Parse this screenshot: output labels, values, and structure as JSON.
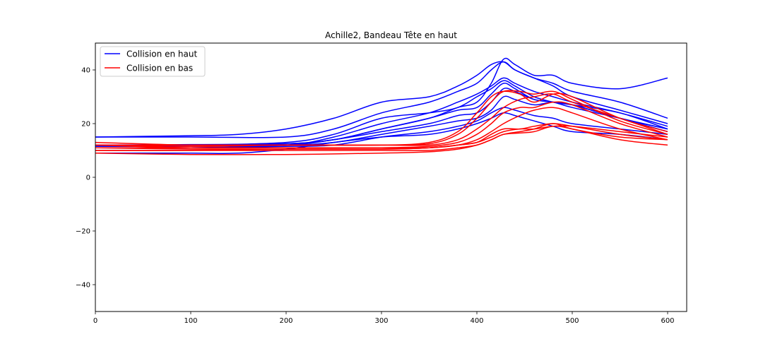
{
  "chart_data": {
    "type": "line",
    "title": "Achille2, Bandeau Tête en haut",
    "xlabel": "",
    "ylabel": "",
    "xlim": [
      0,
      620
    ],
    "ylim": [
      -50,
      50
    ],
    "xticks": [
      0,
      100,
      200,
      300,
      400,
      500,
      600
    ],
    "yticks": [
      -40,
      -20,
      0,
      20,
      40
    ],
    "grid": false,
    "legend_position": "top-left",
    "legend": [
      {
        "label": "Collision en haut",
        "color": "#0000ff"
      },
      {
        "label": "Collision en bas",
        "color": "#ff0000"
      }
    ],
    "series": [
      {
        "group": "Collision en haut",
        "color": "#0000ff",
        "x": [
          0,
          100,
          200,
          250,
          300,
          350,
          380,
          400,
          415,
          428,
          440,
          460,
          480,
          500,
          550,
          600
        ],
        "y": [
          12,
          12.2,
          12.5,
          14,
          18,
          22,
          26,
          28,
          35,
          44,
          42,
          38,
          38,
          35,
          33,
          37
        ]
      },
      {
        "group": "Collision en haut",
        "color": "#0000ff",
        "x": [
          0,
          100,
          200,
          250,
          300,
          350,
          380,
          400,
          415,
          428,
          440,
          460,
          480,
          500,
          550,
          600
        ],
        "y": [
          15,
          15,
          15,
          18,
          24,
          28,
          32,
          35,
          40,
          43,
          40,
          37,
          35,
          32,
          28,
          22
        ]
      },
      {
        "group": "Collision en haut",
        "color": "#0000ff",
        "x": [
          0,
          100,
          150,
          200,
          250,
          300,
          350,
          380,
          400,
          415,
          428,
          440,
          460,
          480,
          500,
          550,
          600
        ],
        "y": [
          15,
          15.5,
          16,
          18,
          22,
          28,
          30,
          34,
          38,
          42,
          43,
          40,
          37,
          34,
          30,
          25,
          20
        ]
      },
      {
        "group": "Collision en haut",
        "color": "#0000ff",
        "x": [
          0,
          100,
          200,
          250,
          300,
          350,
          380,
          400,
          415,
          428,
          440,
          460,
          480,
          500,
          550,
          600
        ],
        "y": [
          11,
          11,
          12,
          15,
          20,
          24,
          28,
          31,
          34,
          37,
          35,
          32,
          30,
          28,
          24,
          19
        ]
      },
      {
        "group": "Collision en haut",
        "color": "#0000ff",
        "x": [
          0,
          100,
          200,
          250,
          300,
          350,
          380,
          400,
          415,
          428,
          440,
          460,
          480,
          500,
          550,
          600
        ],
        "y": [
          12,
          12,
          13,
          16,
          22,
          24,
          26,
          30,
          33,
          36,
          34,
          30,
          28,
          27,
          24,
          18
        ]
      },
      {
        "group": "Collision en haut",
        "color": "#0000ff",
        "x": [
          0,
          100,
          200,
          250,
          300,
          350,
          380,
          400,
          415,
          428,
          440,
          460,
          480,
          500,
          550,
          600
        ],
        "y": [
          12,
          12,
          12.5,
          14,
          18,
          22,
          25,
          26,
          31,
          35,
          33,
          29,
          28,
          26,
          22,
          18
        ]
      },
      {
        "group": "Collision en haut",
        "color": "#0000ff",
        "x": [
          0,
          100,
          200,
          250,
          300,
          350,
          380,
          400,
          415,
          428,
          440,
          460,
          480,
          500,
          550,
          600
        ],
        "y": [
          11.5,
          11.5,
          12,
          14,
          17,
          20,
          23,
          24,
          28,
          33,
          32,
          29,
          28,
          27,
          22,
          18
        ]
      },
      {
        "group": "Collision en haut",
        "color": "#0000ff",
        "x": [
          0,
          100,
          200,
          250,
          300,
          350,
          380,
          400,
          415,
          428,
          440,
          460,
          480,
          500,
          550,
          600
        ],
        "y": [
          12,
          12,
          12,
          13,
          16,
          19,
          21,
          22,
          25,
          30,
          29,
          27,
          28,
          27,
          22,
          17
        ]
      },
      {
        "group": "Collision en haut",
        "color": "#0000ff",
        "x": [
          0,
          100,
          200,
          250,
          300,
          350,
          380,
          400,
          415,
          428,
          440,
          460,
          480,
          500,
          550,
          600
        ],
        "y": [
          11,
          11,
          11.5,
          12,
          15,
          17,
          19,
          21,
          24,
          26,
          25,
          23,
          22,
          20,
          18,
          16
        ]
      },
      {
        "group": "Collision en haut",
        "color": "#0000ff",
        "x": [
          0,
          100,
          150,
          200,
          250,
          300,
          350,
          380,
          400,
          415,
          428,
          440,
          460,
          480,
          500,
          550,
          600
        ],
        "y": [
          9,
          9,
          9,
          10.5,
          13,
          15,
          16,
          18,
          20,
          22,
          24,
          23,
          21,
          19,
          17,
          16,
          14
        ]
      },
      {
        "group": "Collision en bas",
        "color": "#ff0000",
        "x": [
          0,
          100,
          200,
          300,
          350,
          380,
          400,
          415,
          428,
          445,
          460,
          480,
          500,
          550,
          600
        ],
        "y": [
          13,
          12,
          12,
          12,
          13,
          17,
          24,
          30,
          32,
          31,
          28,
          31,
          30,
          22,
          17
        ]
      },
      {
        "group": "Collision en bas",
        "color": "#ff0000",
        "x": [
          0,
          100,
          200,
          300,
          350,
          380,
          400,
          415,
          428,
          445,
          460,
          480,
          500,
          550,
          600
        ],
        "y": [
          12,
          11.5,
          12,
          12,
          12.5,
          16,
          22,
          28,
          32,
          32,
          31,
          32,
          29,
          21,
          16
        ]
      },
      {
        "group": "Collision en bas",
        "color": "#ff0000",
        "x": [
          0,
          100,
          200,
          300,
          350,
          380,
          400,
          415,
          428,
          445,
          460,
          480,
          500,
          550,
          600
        ],
        "y": [
          12,
          12,
          12,
          12,
          12,
          14,
          18,
          22,
          26,
          29,
          30,
          31,
          28,
          22,
          16
        ]
      },
      {
        "group": "Collision en bas",
        "color": "#ff0000",
        "x": [
          0,
          100,
          200,
          300,
          350,
          380,
          400,
          415,
          428,
          445,
          460,
          480,
          500,
          550,
          600
        ],
        "y": [
          11,
          11,
          11,
          11,
          11.5,
          13,
          16,
          20,
          24,
          26,
          26,
          28,
          27,
          20,
          15
        ]
      },
      {
        "group": "Collision en bas",
        "color": "#ff0000",
        "x": [
          0,
          100,
          200,
          300,
          350,
          380,
          400,
          415,
          428,
          445,
          460,
          480,
          500,
          550,
          600
        ],
        "y": [
          12,
          11,
          11,
          11,
          11,
          12,
          14,
          17,
          20,
          23,
          25,
          26,
          24,
          18,
          14
        ]
      },
      {
        "group": "Collision en bas",
        "color": "#ff0000",
        "x": [
          0,
          100,
          200,
          300,
          350,
          380,
          400,
          415,
          428,
          445,
          460,
          480,
          500,
          550,
          600
        ],
        "y": [
          10,
          10,
          10.5,
          10.5,
          11,
          12,
          13,
          16,
          18,
          18,
          19,
          20,
          19,
          16,
          14
        ]
      },
      {
        "group": "Collision en bas",
        "color": "#ff0000",
        "x": [
          0,
          100,
          200,
          300,
          350,
          380,
          400,
          415,
          428,
          445,
          460,
          480,
          500,
          550,
          600
        ],
        "y": [
          11,
          10.5,
          10.5,
          10.5,
          11,
          12,
          13,
          15,
          17,
          18,
          18,
          19,
          19,
          17,
          15
        ]
      },
      {
        "group": "Collision en bas",
        "color": "#ff0000",
        "x": [
          0,
          100,
          200,
          300,
          350,
          380,
          400,
          415,
          428,
          445,
          460,
          480,
          500,
          550,
          600
        ],
        "y": [
          10,
          10,
          10,
          10,
          10,
          11,
          12,
          14,
          16,
          17,
          18,
          20,
          18,
          15,
          14
        ]
      },
      {
        "group": "Collision en bas",
        "color": "#ff0000",
        "x": [
          0,
          100,
          200,
          300,
          350,
          380,
          400,
          415,
          428,
          445,
          460,
          480,
          500,
          550,
          600
        ],
        "y": [
          9,
          8.5,
          8.5,
          9,
          9.5,
          10.5,
          12,
          14,
          16,
          16.5,
          17,
          19,
          18,
          14,
          12
        ]
      }
    ]
  }
}
